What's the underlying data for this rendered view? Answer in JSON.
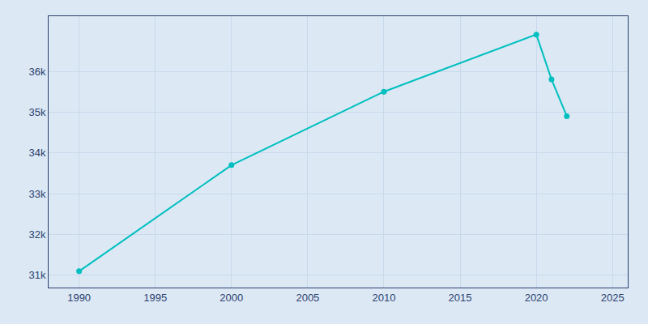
{
  "chart_data": {
    "type": "line",
    "x": [
      1990,
      2000,
      2010,
      2020,
      2021,
      2022
    ],
    "values": [
      31100,
      33700,
      35500,
      36900,
      35800,
      34900
    ],
    "color": "#00BFBF",
    "marker": "circle",
    "xlim": [
      1988,
      2026
    ],
    "xticks": [
      1990,
      1995,
      2000,
      2005,
      2010,
      2015,
      2020,
      2025
    ],
    "ylim": [
      30700,
      37350
    ],
    "yticks": [
      {
        "value": 31000,
        "label": "31k"
      },
      {
        "value": 32000,
        "label": "32k"
      },
      {
        "value": 33000,
        "label": "33k"
      },
      {
        "value": 34000,
        "label": "34k"
      },
      {
        "value": 35000,
        "label": "35k"
      },
      {
        "value": 36000,
        "label": "36k"
      }
    ],
    "grid": true
  }
}
